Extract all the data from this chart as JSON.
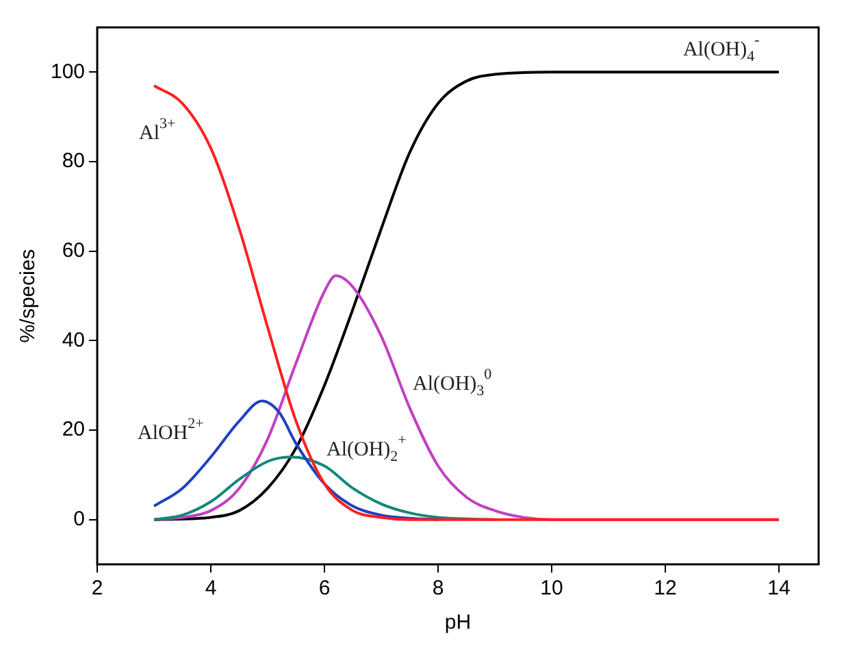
{
  "chart_data": {
    "type": "line",
    "xlabel": "pH",
    "ylabel": "%/species",
    "xlim": [
      2,
      14.7
    ],
    "xticks": [
      2,
      4,
      6,
      8,
      10,
      12,
      14
    ],
    "ylim": [
      -10,
      110
    ],
    "yticks": [
      0,
      20,
      40,
      60,
      80,
      100
    ],
    "grid": false,
    "legend": false,
    "series": [
      {
        "name": "Al$^{3+}$",
        "color": "#ff2020",
        "x": [
          3,
          3.5,
          4,
          4.5,
          5,
          5.5,
          6,
          6.5,
          7,
          7.5,
          8,
          10,
          14
        ],
        "values": [
          97,
          93,
          83,
          65,
          43,
          22,
          8,
          2,
          0.5,
          0,
          0,
          0,
          0
        ]
      },
      {
        "name": "AlOH$^{2+}$",
        "color": "#2040c0",
        "x": [
          3,
          3.5,
          4,
          4.5,
          4.9,
          5.2,
          5.5,
          6,
          6.5,
          7,
          7.5,
          8
        ],
        "values": [
          3,
          7,
          14,
          22,
          26.5,
          24,
          17,
          8,
          3,
          1,
          0.3,
          0
        ]
      },
      {
        "name": "Al(OH)$_{2}$$^{+}$",
        "color": "#108878",
        "x": [
          3,
          3.5,
          4,
          4.5,
          5,
          5.4,
          6,
          6.5,
          7,
          7.5,
          8,
          9
        ],
        "values": [
          0,
          1,
          4,
          9,
          13,
          14,
          12,
          7,
          3.5,
          1.5,
          0.5,
          0
        ]
      },
      {
        "name": "Al(OH)$_{3}$$^{0}$",
        "color": "#c040c0",
        "x": [
          3,
          3.5,
          4,
          4.5,
          5,
          5.5,
          6,
          6.2,
          6.5,
          7,
          7.5,
          8,
          8.5,
          9,
          9.5,
          10,
          14
        ],
        "values": [
          0,
          0.5,
          2,
          7,
          18,
          35,
          51,
          54.5,
          52,
          41,
          25,
          12,
          5,
          2,
          0.5,
          0,
          0
        ]
      },
      {
        "name": "Al(OH)$_{4}$$^{-}$",
        "color": "#000000",
        "x": [
          3,
          4,
          4.5,
          5,
          5.5,
          6,
          6.5,
          7,
          7.5,
          8,
          8.5,
          9,
          10,
          14
        ],
        "values": [
          0,
          0.5,
          2,
          7,
          16,
          30,
          47,
          65,
          82,
          93,
          98,
          99.5,
          100,
          100
        ]
      }
    ]
  }
}
